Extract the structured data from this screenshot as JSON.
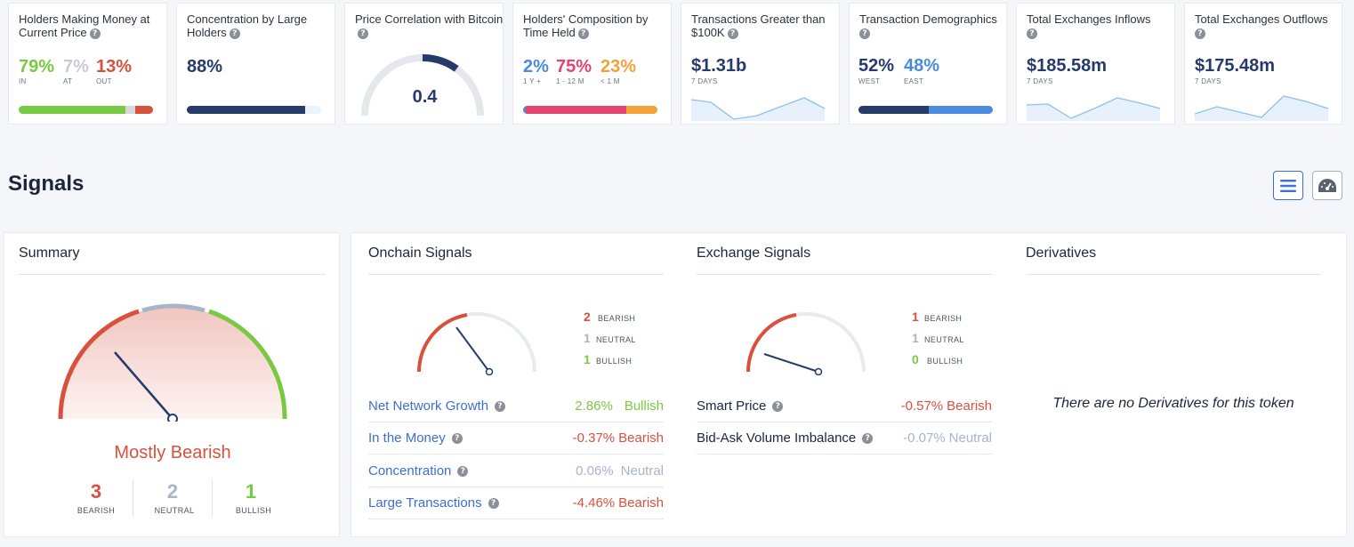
{
  "colors": {
    "green": "#7ac943",
    "red": "#d9513c",
    "gray": "#a9b4c9",
    "navy": "#263a6b",
    "blue": "#4a8be0",
    "pink": "#e2456e",
    "orange": "#f3a235",
    "lightblue": "#8ec0ea"
  },
  "cards": {
    "money": {
      "title": "Holders Making Money at Current Price",
      "in_value": "79%",
      "at_value": "7%",
      "out_value": "13%",
      "in_label": "IN",
      "at_label": "AT",
      "out_label": "OUT",
      "in_pct": 79,
      "at_pct": 7,
      "out_pct": 13
    },
    "concentration": {
      "title": "Concentration by Large Holders",
      "value": "88%",
      "pct": 88
    },
    "correlation": {
      "title": "Price Correlation with Bitcoin",
      "value": "0.4",
      "level": 0.4
    },
    "composition": {
      "title": "Holders' Composition by Time Held",
      "v1": "2%",
      "v2": "75%",
      "v3": "23%",
      "l1": "1 Y +",
      "l2": "1 - 12 M",
      "l3": "< 1 M",
      "p1": 2,
      "p2": 75,
      "p3": 23
    },
    "transactions": {
      "title": "Transactions Greater than $100K",
      "value": "$1.31b",
      "sub": "7 DAYS"
    },
    "demographics": {
      "title": "Transaction Demographics",
      "v1": "52%",
      "v2": "48%",
      "l1": "WEST",
      "l2": "EAST",
      "p1": 52,
      "p2": 48
    },
    "inflows": {
      "title": "Total Exchanges Inflows",
      "value": "$185.58m",
      "sub": "7 DAYS"
    },
    "outflows": {
      "title": "Total Exchanges Outflows",
      "value": "$175.48m",
      "sub": "7 DAYS"
    }
  },
  "signals": {
    "title": "Signals",
    "list_view_icon": "list-icon",
    "gauge_view_icon": "speedometer-icon",
    "summary": {
      "title": "Summary",
      "verdict": "Mostly Bearish",
      "bearish_count": "3",
      "neutral_count": "2",
      "bullish_count": "1",
      "bearish_label": "BEARISH",
      "neutral_label": "NEUTRAL",
      "bullish_label": "BULLISH"
    },
    "onchain": {
      "title": "Onchain Signals",
      "bearish": "2",
      "neutral": "1",
      "bullish": "1",
      "bearish_label": "BEARISH",
      "neutral_label": "NEUTRAL",
      "bullish_label": "BULLISH",
      "rows": [
        {
          "label": "Net Network Growth",
          "pct": "2.86%",
          "verdict": "Bullish"
        },
        {
          "label": "In the Money",
          "pct": "-0.37%",
          "verdict": "Bearish"
        },
        {
          "label": "Concentration",
          "pct": "0.06%",
          "verdict": "Neutral"
        },
        {
          "label": "Large Transactions",
          "pct": "-4.46%",
          "verdict": "Bearish"
        }
      ]
    },
    "exchange": {
      "title": "Exchange Signals",
      "bearish": "1",
      "neutral": "1",
      "bullish": "0",
      "bearish_label": "BEARISH",
      "neutral_label": "NEUTRAL",
      "bullish_label": "BULLISH",
      "rows": [
        {
          "label": "Smart Price",
          "pct": "-0.57%",
          "verdict": "Bearish"
        },
        {
          "label": "Bid-Ask Volume Imbalance",
          "pct": "-0.07%",
          "verdict": "Neutral"
        }
      ]
    },
    "derivatives": {
      "title": "Derivatives",
      "empty_text": "There are no Derivatives for this token"
    }
  }
}
